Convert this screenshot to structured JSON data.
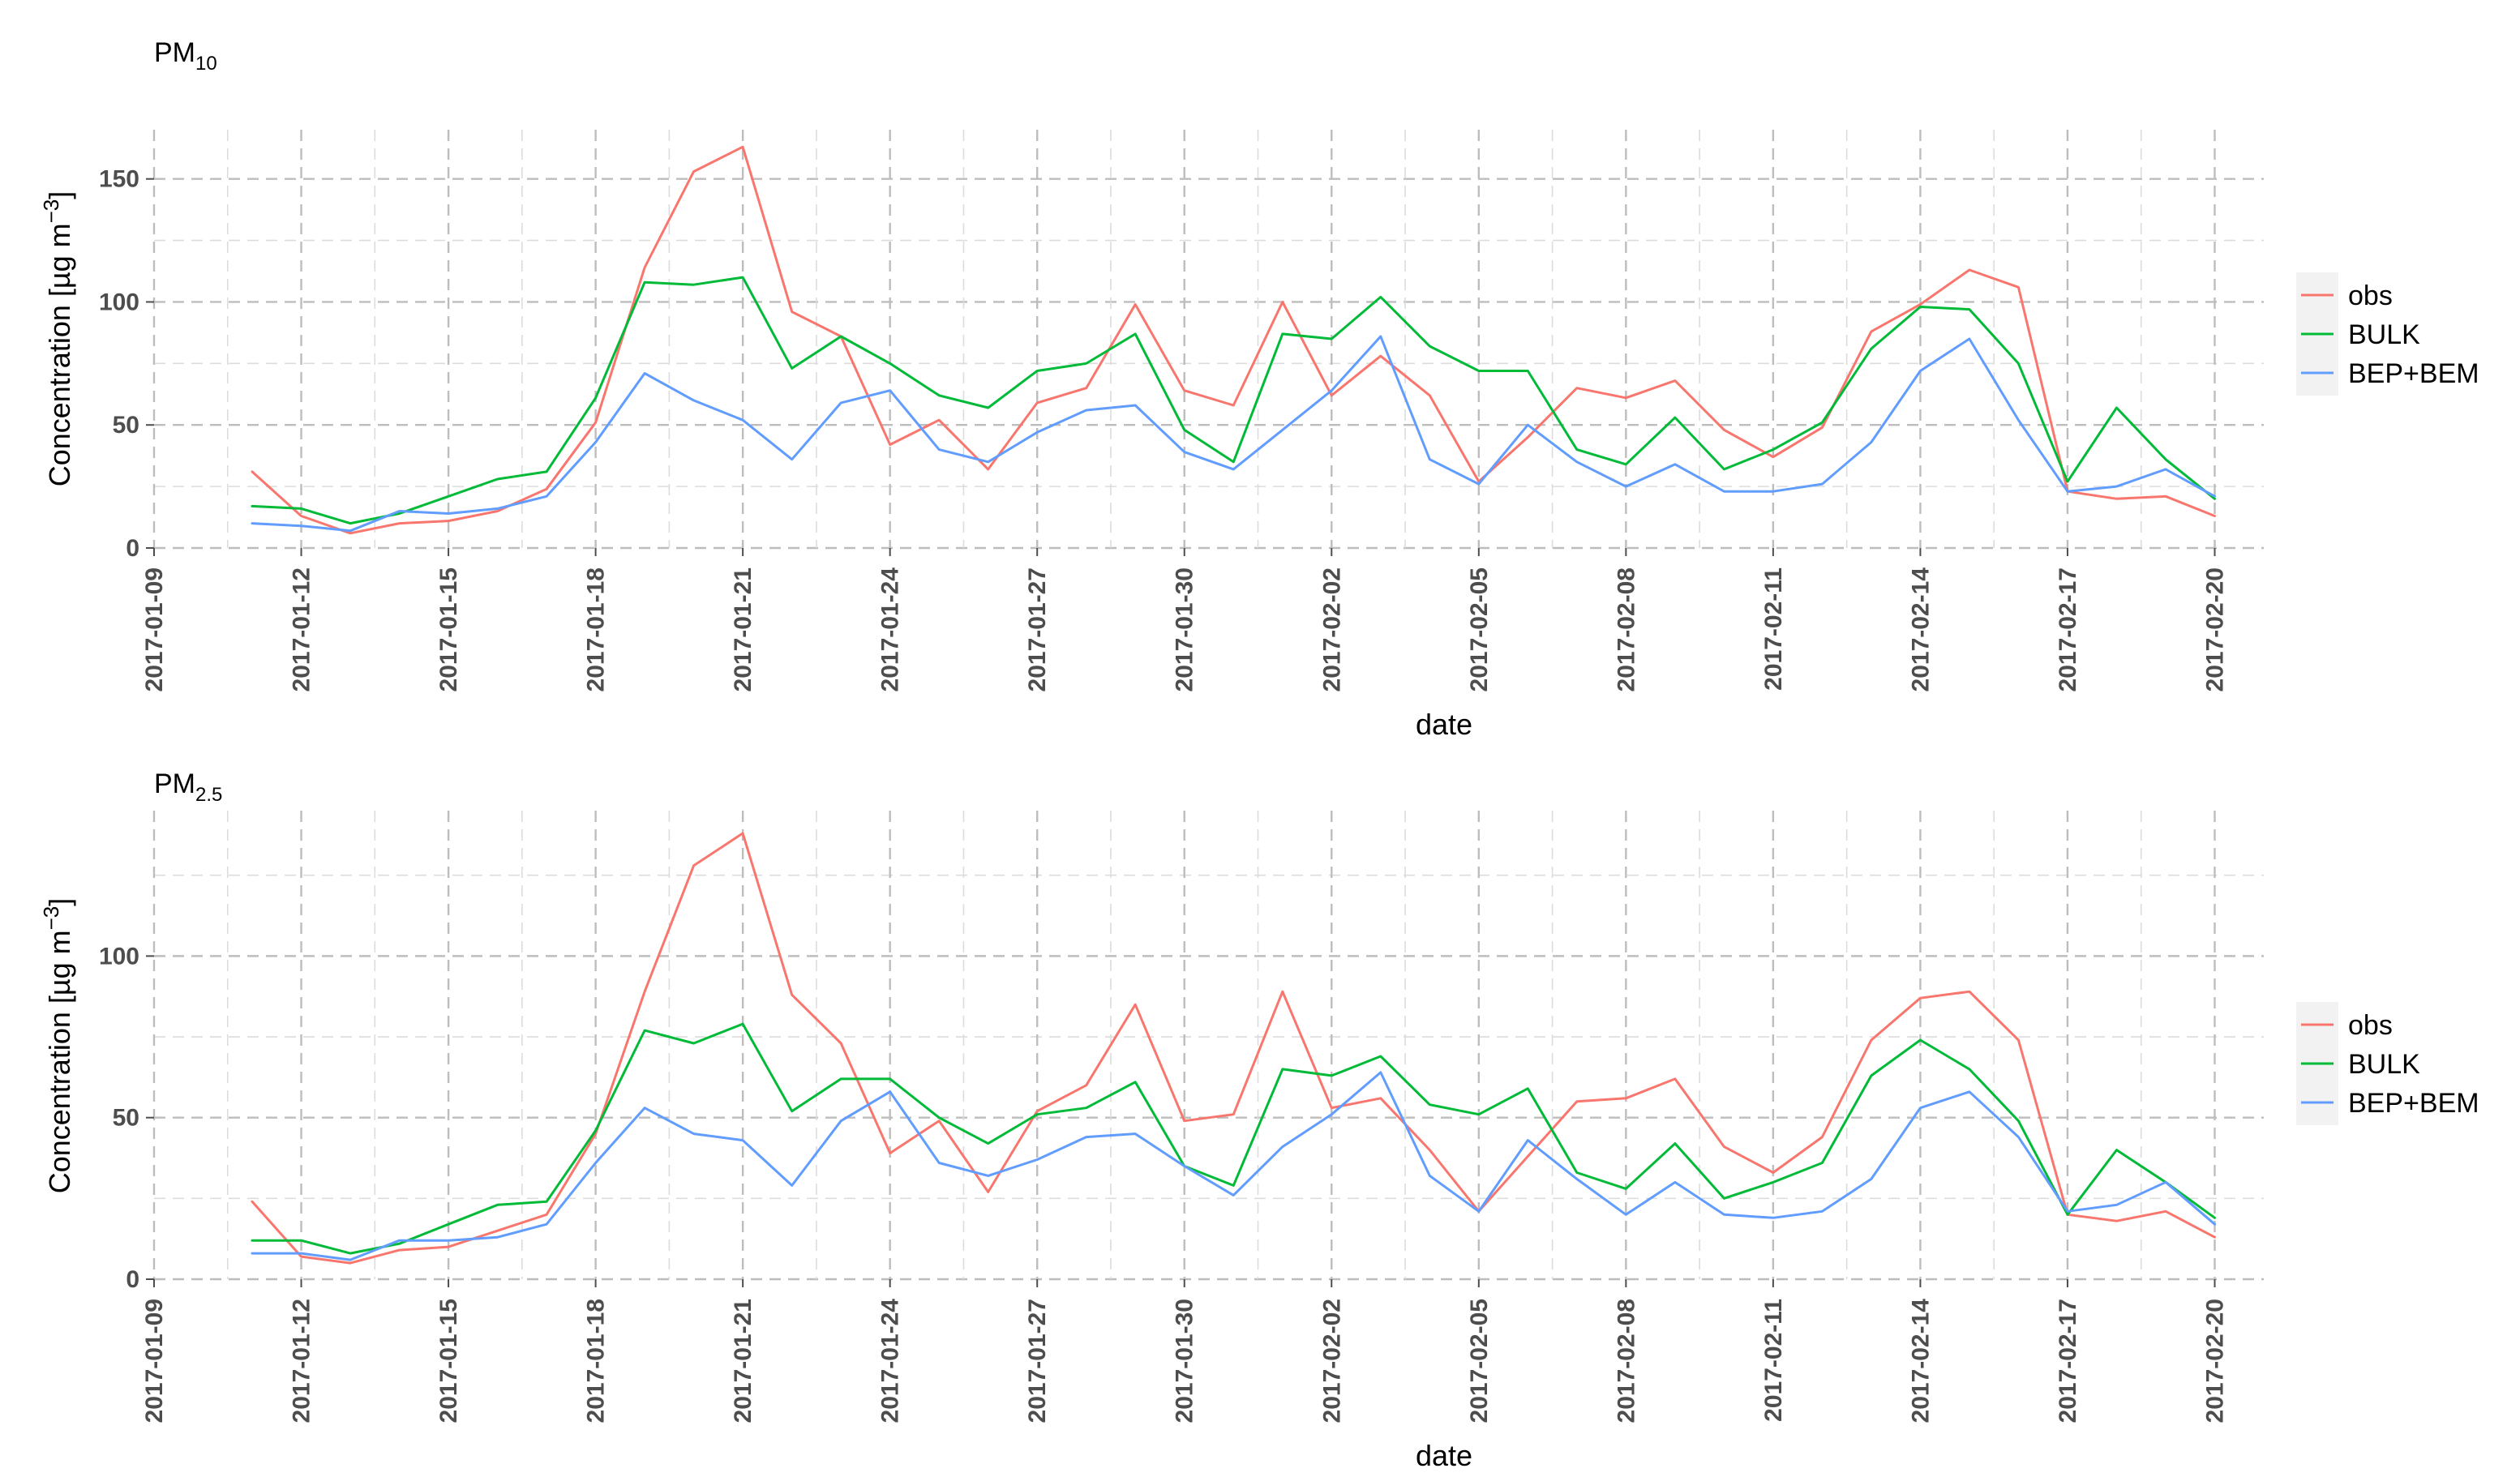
{
  "chart_data": [
    {
      "type": "line",
      "title_main": "PM",
      "title_sub": "10",
      "xlabel": "date",
      "ylabel_main": "Concentration [µg m",
      "ylabel_sup": "−3",
      "ylabel_end": "]",
      "y_ticks": [
        "0",
        "50",
        "100",
        "150"
      ],
      "ylim": [
        0,
        170
      ],
      "x_ticks": [
        "2017-01-09",
        "2017-01-12",
        "2017-01-15",
        "2017-01-18",
        "2017-01-21",
        "2017-01-24",
        "2017-01-27",
        "2017-01-30",
        "2017-02-02",
        "2017-02-05",
        "2017-02-08",
        "2017-02-11",
        "2017-02-14",
        "2017-02-17",
        "2017-02-20"
      ],
      "xlim": [
        "2017-01-09",
        "2017-02-21"
      ],
      "grid": true,
      "legend_position": "right",
      "x": [
        "2017-01-11",
        "2017-01-12",
        "2017-01-13",
        "2017-01-14",
        "2017-01-15",
        "2017-01-16",
        "2017-01-17",
        "2017-01-18",
        "2017-01-19",
        "2017-01-20",
        "2017-01-21",
        "2017-01-22",
        "2017-01-23",
        "2017-01-24",
        "2017-01-25",
        "2017-01-26",
        "2017-01-27",
        "2017-01-28",
        "2017-01-29",
        "2017-01-30",
        "2017-01-31",
        "2017-02-01",
        "2017-02-02",
        "2017-02-03",
        "2017-02-04",
        "2017-02-05",
        "2017-02-06",
        "2017-02-07",
        "2017-02-08",
        "2017-02-09",
        "2017-02-10",
        "2017-02-11",
        "2017-02-12",
        "2017-02-13",
        "2017-02-14",
        "2017-02-15",
        "2017-02-16",
        "2017-02-17",
        "2017-02-18",
        "2017-02-19",
        "2017-02-20"
      ],
      "series": [
        {
          "name": "obs",
          "color": "#F8766D",
          "values": [
            31,
            13,
            6,
            10,
            11,
            15,
            24,
            51,
            114,
            153,
            163,
            96,
            86,
            42,
            52,
            32,
            59,
            65,
            99,
            64,
            58,
            100,
            62,
            78,
            62,
            27,
            45,
            65,
            61,
            68,
            48,
            37,
            49,
            88,
            99,
            113,
            106,
            23,
            20,
            21,
            13
          ]
        },
        {
          "name": "BULK",
          "color": "#00BA38",
          "values": [
            17,
            16,
            10,
            14,
            21,
            28,
            31,
            61,
            108,
            107,
            110,
            73,
            86,
            75,
            62,
            57,
            72,
            75,
            87,
            48,
            35,
            87,
            85,
            102,
            82,
            72,
            72,
            40,
            34,
            53,
            32,
            40,
            51,
            81,
            98,
            97,
            75,
            27,
            57,
            36,
            20
          ]
        },
        {
          "name": "BEP+BEM",
          "color": "#619CFF",
          "values": [
            10,
            9,
            7,
            15,
            14,
            16,
            21,
            43,
            71,
            60,
            52,
            36,
            59,
            64,
            40,
            35,
            47,
            56,
            58,
            39,
            32,
            48,
            64,
            86,
            36,
            26,
            50,
            35,
            25,
            34,
            23,
            23,
            26,
            43,
            72,
            85,
            52,
            23,
            25,
            32,
            21
          ]
        }
      ]
    },
    {
      "type": "line",
      "title_main": "PM",
      "title_sub": "2.5",
      "xlabel": "date",
      "ylabel_main": "Concentration [µg m",
      "ylabel_sup": "−3",
      "ylabel_end": "]",
      "y_ticks": [
        "0",
        "50",
        "100"
      ],
      "ylim": [
        0,
        145
      ],
      "x_ticks": [
        "2017-01-09",
        "2017-01-12",
        "2017-01-15",
        "2017-01-18",
        "2017-01-21",
        "2017-01-24",
        "2017-01-27",
        "2017-01-30",
        "2017-02-02",
        "2017-02-05",
        "2017-02-08",
        "2017-02-11",
        "2017-02-14",
        "2017-02-17",
        "2017-02-20"
      ],
      "xlim": [
        "2017-01-09",
        "2017-02-21"
      ],
      "grid": true,
      "legend_position": "right",
      "x": [
        "2017-01-11",
        "2017-01-12",
        "2017-01-13",
        "2017-01-14",
        "2017-01-15",
        "2017-01-16",
        "2017-01-17",
        "2017-01-18",
        "2017-01-19",
        "2017-01-20",
        "2017-01-21",
        "2017-01-22",
        "2017-01-23",
        "2017-01-24",
        "2017-01-25",
        "2017-01-26",
        "2017-01-27",
        "2017-01-28",
        "2017-01-29",
        "2017-01-30",
        "2017-01-31",
        "2017-02-01",
        "2017-02-02",
        "2017-02-03",
        "2017-02-04",
        "2017-02-05",
        "2017-02-06",
        "2017-02-07",
        "2017-02-08",
        "2017-02-09",
        "2017-02-10",
        "2017-02-11",
        "2017-02-12",
        "2017-02-13",
        "2017-02-14",
        "2017-02-15",
        "2017-02-16",
        "2017-02-17",
        "2017-02-18",
        "2017-02-19",
        "2017-02-20"
      ],
      "series": [
        {
          "name": "obs",
          "color": "#F8766D",
          "values": [
            24,
            7,
            5,
            9,
            10,
            15,
            20,
            45,
            89,
            128,
            138,
            88,
            73,
            39,
            49,
            27,
            52,
            60,
            85,
            49,
            51,
            89,
            53,
            56,
            40,
            21,
            38,
            55,
            56,
            62,
            41,
            33,
            44,
            74,
            87,
            89,
            74,
            20,
            18,
            21,
            13
          ]
        },
        {
          "name": "BULK",
          "color": "#00BA38",
          "values": [
            12,
            12,
            8,
            11,
            17,
            23,
            24,
            46,
            77,
            73,
            79,
            52,
            62,
            62,
            50,
            42,
            51,
            53,
            61,
            35,
            29,
            65,
            63,
            69,
            54,
            51,
            59,
            33,
            28,
            42,
            25,
            30,
            36,
            63,
            74,
            65,
            49,
            20,
            40,
            30,
            19
          ]
        },
        {
          "name": "BEP+BEM",
          "color": "#619CFF",
          "values": [
            8,
            8,
            6,
            12,
            12,
            13,
            17,
            36,
            53,
            45,
            43,
            29,
            49,
            58,
            36,
            32,
            37,
            44,
            45,
            35,
            26,
            41,
            51,
            64,
            32,
            21,
            43,
            31,
            20,
            30,
            20,
            19,
            21,
            31,
            53,
            58,
            44,
            21,
            23,
            30,
            17
          ]
        }
      ]
    }
  ]
}
